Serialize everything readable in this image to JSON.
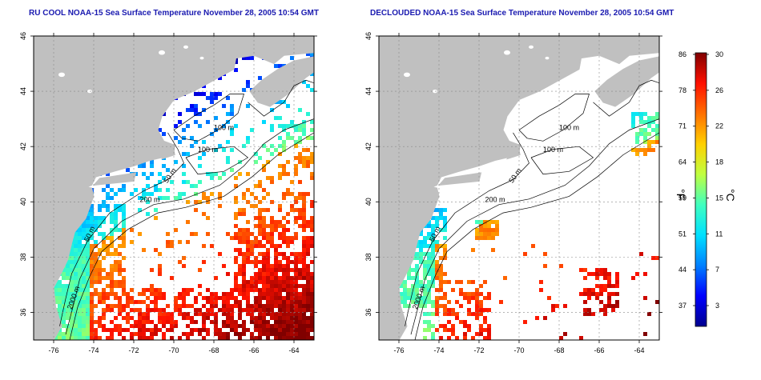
{
  "panels": [
    {
      "id": "left",
      "title": "RU COOL NOAA-15 Sea Surface Temperature November 28, 2005 10:54 GMT",
      "x_ticks": [
        "-76",
        "-74",
        "-72",
        "-70",
        "-68",
        "-66",
        "-64"
      ],
      "y_ticks": [
        "46",
        "44",
        "42",
        "40",
        "38",
        "36"
      ],
      "contour_labels": [
        "100 m",
        "100 m",
        "50 m",
        "200 m",
        "50 m",
        "2000 m"
      ]
    },
    {
      "id": "right",
      "title": "DECLOUDED NOAA-15 Sea Surface Temperature November 28, 2005 10:54 GMT",
      "x_ticks": [
        "-76",
        "-74",
        "-72",
        "-70",
        "-68",
        "-66",
        "-64"
      ],
      "y_ticks": [
        "46",
        "44",
        "42",
        "40",
        "38",
        "36"
      ],
      "contour_labels": [
        "100 m",
        "100 m",
        "50 m",
        "200 m",
        "50 m",
        "2000 m"
      ]
    }
  ],
  "map_extent": {
    "lon": [
      -77,
      -63
    ],
    "lat": [
      35,
      46
    ]
  },
  "colorbar": {
    "fahrenheit_label": "°F",
    "celsius_label": "°C",
    "fahrenheit_ticks": [
      "86",
      "78",
      "71",
      "64",
      "59",
      "51",
      "44",
      "37"
    ],
    "celsius_ticks": [
      "30",
      "26",
      "22",
      "18",
      "15",
      "11",
      "7",
      "3"
    ],
    "range_c": [
      0,
      30
    ],
    "colors": [
      "#00008f",
      "#0000ff",
      "#0080ff",
      "#00e0ff",
      "#40ffbf",
      "#c0ff40",
      "#ffd000",
      "#ff7000",
      "#ff1000",
      "#800000"
    ]
  },
  "colors": {
    "land": "#c0c0c0",
    "title": "#1a1ab0",
    "cloud": "#ffffff"
  }
}
